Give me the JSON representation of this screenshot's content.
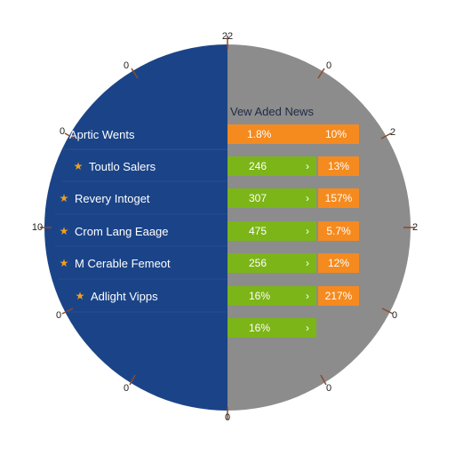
{
  "dial": {
    "left_color": "#1b4488",
    "right_color": "#8c8c8c",
    "tick_labels": {
      "top": "22",
      "top_left": "0",
      "top_right": "0",
      "left_upper": "0",
      "right_upper": "2",
      "left": "10",
      "right": "2",
      "left_lower": "0",
      "right_lower": "0",
      "bottom_left": "0",
      "bottom_right": "0",
      "bottom": "0"
    }
  },
  "panel": {
    "header": "Vew Aded News",
    "top_row": {
      "label": "Aprtic Wents",
      "value_1": "1.8%",
      "value_2": "10%"
    },
    "rows": [
      {
        "label": "Toutlo Salers",
        "value": "246",
        "percent": "13%"
      },
      {
        "label": "Revery Intoget",
        "value": "307",
        "percent": "157%"
      },
      {
        "label": "Crom Lang Eaage",
        "value": "475",
        "percent": "5.7%"
      },
      {
        "label": "M Cerable Femeot",
        "value": "256",
        "percent": "12%"
      },
      {
        "label": "Adlight Vipps",
        "value": "16%",
        "percent": "217%"
      }
    ],
    "last_row": {
      "value": "16%"
    }
  },
  "colors": {
    "green": "#7cb518",
    "orange": "#f58a1f",
    "star": "#f2a01c"
  }
}
